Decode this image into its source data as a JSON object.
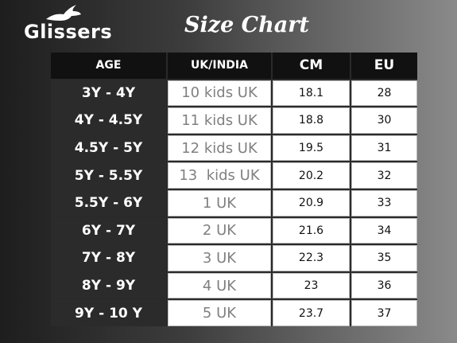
{
  "header": {
    "logo": "Glissers",
    "title": "Size Chart"
  },
  "table": {
    "columns": [
      "AGE",
      "UK/INDIA",
      "CM",
      "EU"
    ],
    "rows": [
      [
        "3Y - 4Y",
        "10 kids UK",
        "18.1",
        "28"
      ],
      [
        "4Y - 4.5Y",
        "11 kids UK",
        "18.8",
        "30"
      ],
      [
        "4.5Y - 5Y",
        "12 kids UK",
        "19.5",
        "31"
      ],
      [
        "5Y - 5.5Y",
        "13  kids UK",
        "20.2",
        "32"
      ],
      [
        "5.5Y - 6Y",
        "1 UK",
        "20.9",
        "33"
      ],
      [
        "6Y - 7Y",
        "2 UK",
        "21.6",
        "34"
      ],
      [
        "7Y - 8Y",
        "3 UK",
        "22.3",
        "35"
      ],
      [
        "8Y - 9Y",
        "4 UK",
        "23",
        "36"
      ],
      [
        "9Y - 10 Y",
        "5 UK",
        "23.7",
        "37"
      ]
    ]
  }
}
